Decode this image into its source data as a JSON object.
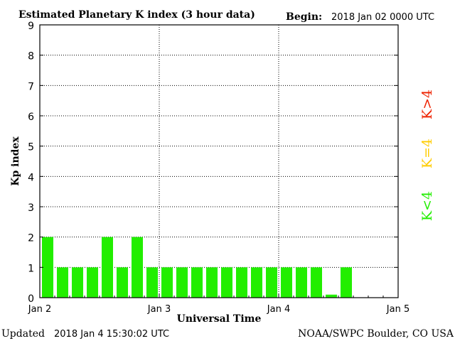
{
  "header": {
    "title": "Estimated Planetary K index (3 hour data)",
    "begin_label": "Begin:",
    "begin_value": "2018 Jan 02 0000 UTC"
  },
  "footer": {
    "updated_label": "Updated",
    "updated_value": "2018 Jan  4 15:30:02 UTC",
    "source": "NOAA/SWPC Boulder, CO USA"
  },
  "legend": {
    "k_greater": "K>4",
    "k_equal": "K=4",
    "k_less": "K<4"
  },
  "colors": {
    "bar_low": "#22ee00",
    "legend_high": "#ee2200",
    "legend_equal": "#ffcc00",
    "legend_low": "#22ee00"
  },
  "chart_data": {
    "type": "bar",
    "title": "Estimated Planetary K index (3 hour data)",
    "xlabel": "Universal Time",
    "ylabel": "Kp index",
    "ylim": [
      0,
      9
    ],
    "yticks": [
      "0",
      "1",
      "2",
      "3",
      "4",
      "5",
      "6",
      "7",
      "8",
      "9"
    ],
    "xticks": [
      "Jan 2",
      "Jan 3",
      "Jan 4",
      "Jan 5"
    ],
    "grid": true,
    "values": [
      2,
      1,
      1,
      1,
      2,
      1,
      2,
      1,
      1,
      1,
      1,
      1,
      1,
      1,
      1,
      1,
      1,
      1,
      1,
      0.1,
      1
    ]
  }
}
